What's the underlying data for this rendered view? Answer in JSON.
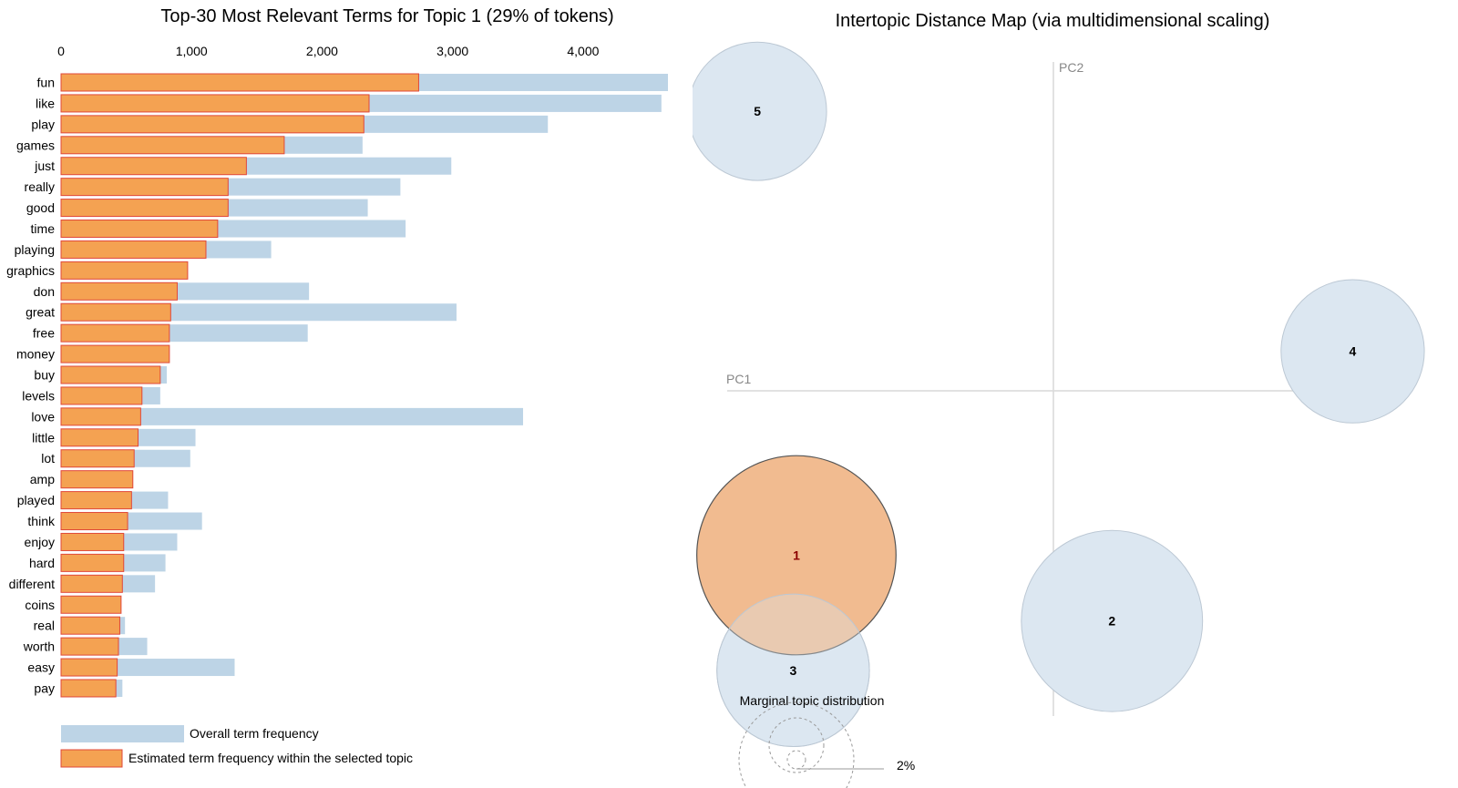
{
  "chart_data": [
    {
      "type": "bar",
      "orientation": "horizontal",
      "title": "Top-30 Most Relevant Terms for Topic 1 (29% of tokens)",
      "x_ticks": [
        0,
        1000,
        2000,
        3000,
        4000
      ],
      "x_tick_labels": [
        "0",
        "1,000",
        "2,000",
        "3,000",
        "4,000"
      ],
      "xlim": [
        0,
        4650
      ],
      "categories": [
        "fun",
        "like",
        "play",
        "games",
        "just",
        "really",
        "good",
        "time",
        "playing",
        "graphics",
        "don",
        "great",
        "free",
        "money",
        "buy",
        "levels",
        "love",
        "little",
        "lot",
        "amp",
        "played",
        "think",
        "enjoy",
        "hard",
        "different",
        "coins",
        "real",
        "worth",
        "easy",
        "pay"
      ],
      "series": [
        {
          "name": "Overall term frequency",
          "color": "#bdd4e6",
          "values": [
            4650,
            4600,
            3730,
            2310,
            2990,
            2600,
            2350,
            2640,
            1610,
            970,
            1900,
            3030,
            1890,
            830,
            810,
            760,
            3540,
            1030,
            990,
            550,
            820,
            1080,
            890,
            800,
            720,
            460,
            490,
            660,
            1330,
            470
          ]
        },
        {
          "name": "Estimated term frequency within the selected topic",
          "color": "#f4a252",
          "values": [
            2740,
            2360,
            2320,
            1710,
            1420,
            1280,
            1280,
            1200,
            1110,
            970,
            890,
            840,
            830,
            830,
            760,
            620,
            610,
            590,
            560,
            550,
            540,
            510,
            480,
            480,
            470,
            460,
            450,
            440,
            430,
            420
          ]
        }
      ],
      "legend": [
        {
          "label": "Overall term frequency",
          "color": "#bdd4e6"
        },
        {
          "label": "Estimated term frequency within the selected topic",
          "color": "#f4a252"
        }
      ],
      "legend_placement": "bottom-left"
    },
    {
      "type": "scatter",
      "title": "Intertopic Distance Map (via multidimensional scaling)",
      "xlabel": "PC1",
      "ylabel": "PC2",
      "xlim": [
        -1,
        1
      ],
      "ylim": [
        -1,
        1
      ],
      "points": [
        {
          "label": "1",
          "x": -0.79,
          "y": -0.5,
          "size_pct": 29,
          "selected": true
        },
        {
          "label": "2",
          "x": 0.18,
          "y": -0.7,
          "size_pct": 24
        },
        {
          "label": "3",
          "x": -0.8,
          "y": -0.85,
          "size_pct": 17
        },
        {
          "label": "4",
          "x": 0.92,
          "y": 0.12,
          "size_pct": 15
        },
        {
          "label": "5",
          "x": -0.91,
          "y": 0.85,
          "size_pct": 14
        }
      ],
      "colors": {
        "selected": "#f0b78a",
        "default": "#dce7f1",
        "selected_label": "#8b0000"
      },
      "marginal_legend": {
        "title": "Marginal topic distribution",
        "labels": [
          "2%"
        ]
      }
    }
  ]
}
